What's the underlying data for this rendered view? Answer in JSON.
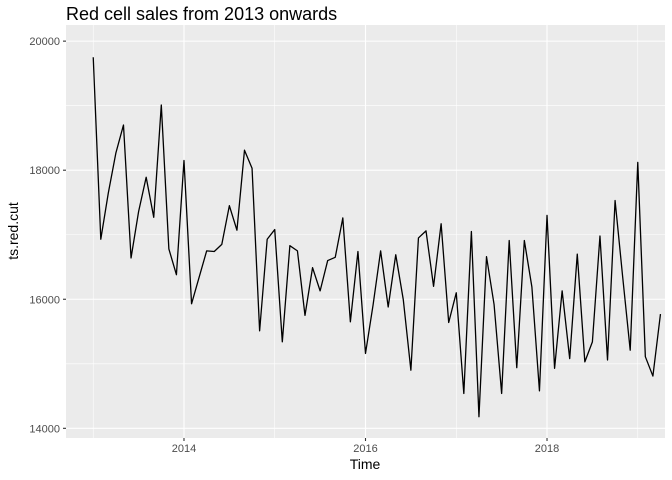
{
  "chart_data": {
    "type": "line",
    "title": "Red cell sales from 2013 onwards",
    "xlabel": "Time",
    "ylabel": "ts.red.cut",
    "start": 2013.0,
    "frequency": 12,
    "xlim": [
      2012.7,
      2019.3
    ],
    "ylim": [
      13850,
      20250
    ],
    "x_ticks": [
      2014,
      2016,
      2018
    ],
    "x_tick_labels": [
      "2014",
      "2016",
      "2018"
    ],
    "y_ticks": [
      14000,
      16000,
      18000,
      20000
    ],
    "y_tick_labels": [
      "14000",
      "16000",
      "18000",
      "20000"
    ],
    "grid": true,
    "background": "#ebebeb",
    "line_color": "#000000",
    "series": [
      {
        "values": [
          19750,
          16930,
          17650,
          18270,
          18700,
          16640,
          17360,
          17890,
          17270,
          19010,
          16780,
          16380,
          18150,
          15930,
          16340,
          16750,
          16740,
          16850,
          17450,
          17070,
          18310,
          18030,
          15510,
          16930,
          17080,
          15340,
          16830,
          16750,
          15750,
          16490,
          16130,
          16600,
          16650,
          17260,
          15650,
          16740,
          15160,
          15910,
          16750,
          15880,
          16690,
          15990,
          14900,
          16950,
          17060,
          16200,
          17170,
          15640,
          16100,
          14540,
          17050,
          14180,
          16660,
          15920,
          14540,
          16910,
          14940,
          16910,
          16190,
          14580,
          17300,
          14930,
          16130,
          15080,
          16700,
          15030,
          15340,
          16980,
          15060,
          17530,
          16350,
          15210,
          18120,
          15110,
          14810,
          15770
        ]
      }
    ]
  }
}
